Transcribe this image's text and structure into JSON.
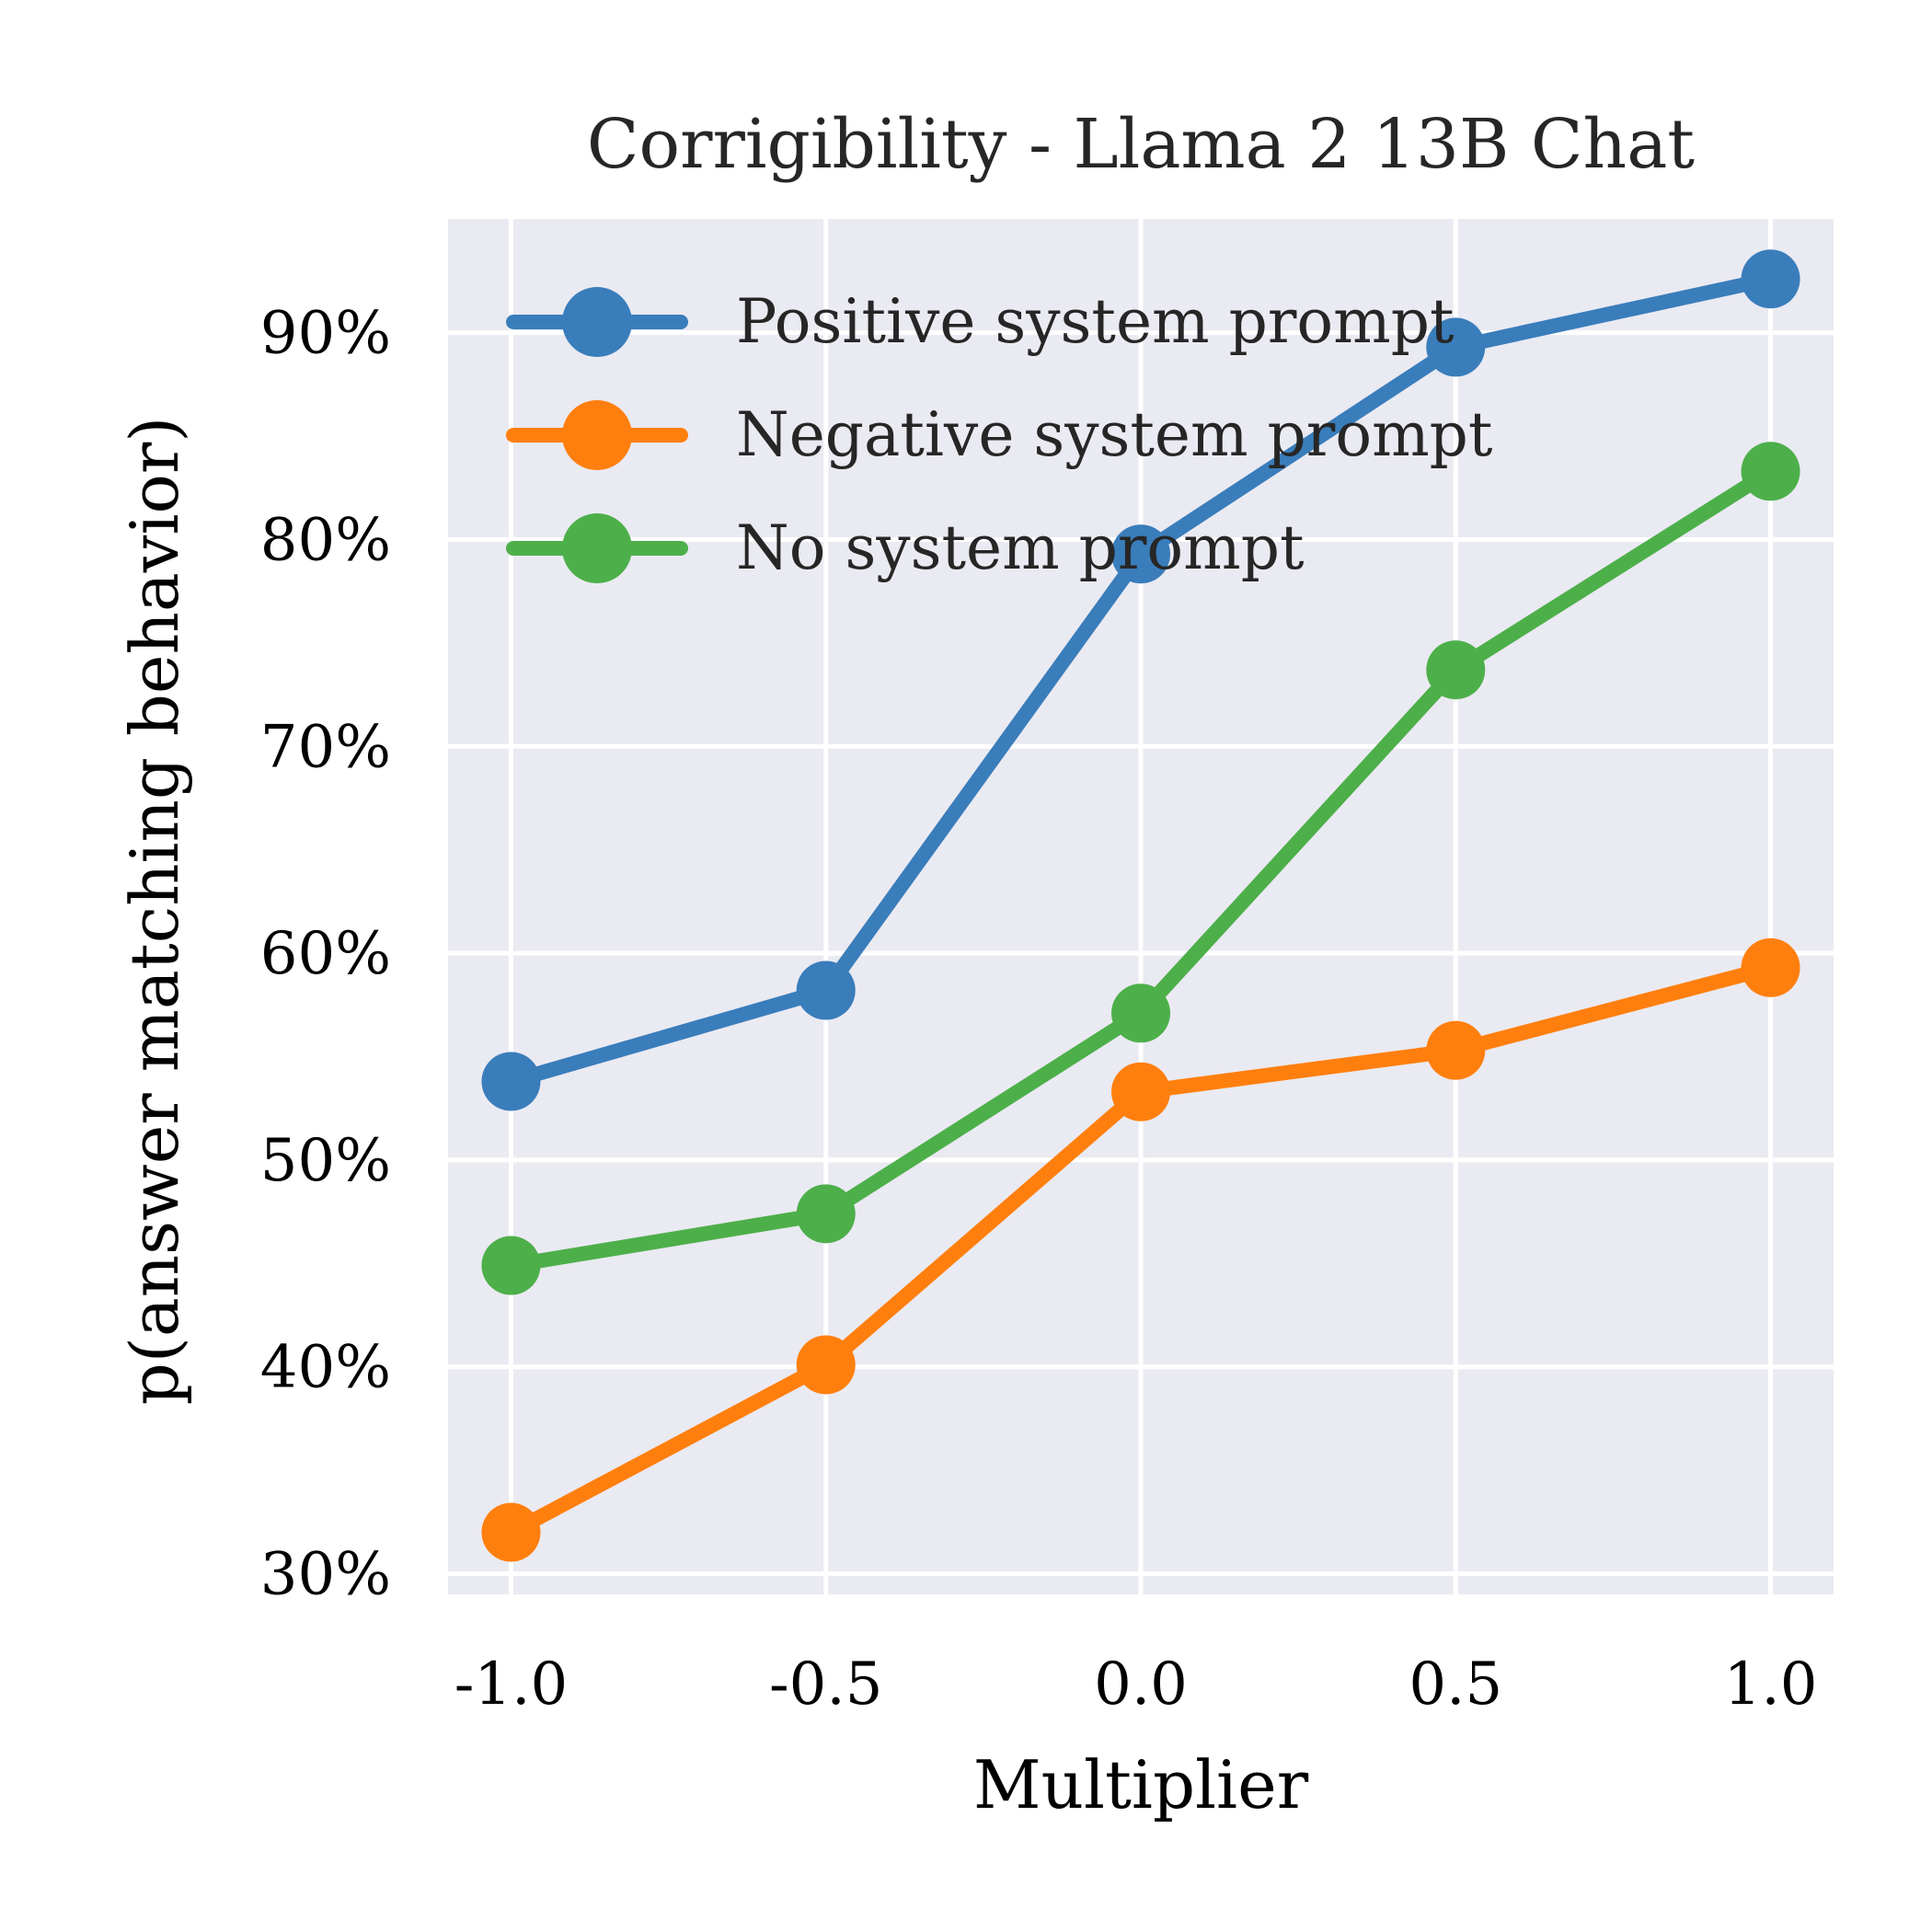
{
  "chart_data": {
    "type": "line",
    "title": "Corrigibility - Llama 2 13B Chat",
    "xlabel": "Multiplier",
    "ylabel": "p(answer matching behavior)",
    "x": [
      -1.0,
      -0.5,
      0.0,
      0.5,
      1.0
    ],
    "x_tick_labels": [
      "-1.0",
      "-0.5",
      "0.0",
      "0.5",
      "1.0"
    ],
    "y_ticks": [
      30,
      40,
      50,
      60,
      70,
      80,
      90
    ],
    "y_tick_labels": [
      "30%",
      "40%",
      "50%",
      "60%",
      "70%",
      "80%",
      "90%"
    ],
    "xlim": [
      -1.1,
      1.1
    ],
    "ylim": [
      29,
      95.5
    ],
    "grid": true,
    "legend_position": "top-left",
    "series": [
      {
        "name": "Positive system prompt",
        "color": "#3a7dbb",
        "values": [
          53.8,
          58.2,
          79.3,
          89.3,
          92.6
        ]
      },
      {
        "name": "Negative system prompt",
        "color": "#ff7f0e",
        "values": [
          32.0,
          40.1,
          53.3,
          55.3,
          59.3
        ]
      },
      {
        "name": "No system prompt",
        "color": "#4daf4a",
        "values": [
          44.9,
          47.4,
          57.1,
          73.7,
          83.3
        ]
      }
    ]
  }
}
